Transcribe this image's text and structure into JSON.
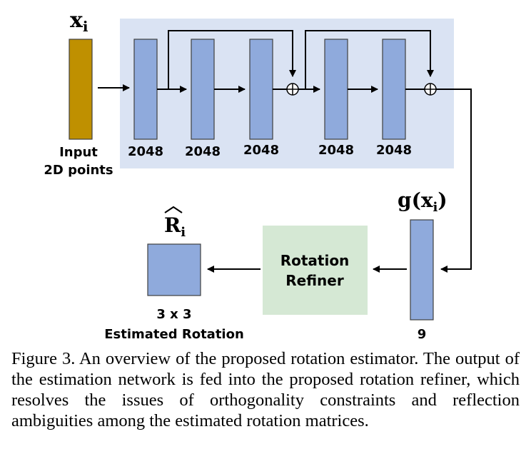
{
  "diagram": {
    "input_var": "x",
    "input_sub": "i",
    "input_label_line1": "Input",
    "input_label_line2": "2D points",
    "layer_sizes": [
      "2048",
      "2048",
      "2048",
      "2048",
      "2048"
    ],
    "output_func": "g(x",
    "output_sub": "i",
    "output_close": ")",
    "output_size": "9",
    "refiner_line1": "Rotation",
    "refiner_line2": "Refiner",
    "result_var": "R",
    "result_sub": "i",
    "result_dim": "3 x 3",
    "result_label": "Estimated Rotation",
    "add_symbol": "⊕",
    "colors": {
      "network_bg": "#dae3f3",
      "layer_fill": "#8faadc",
      "input_fill": "#bf9000",
      "refiner_fill": "#d5e8d4"
    }
  },
  "caption": "Figure 3. An overview of the proposed rotation estimator.  The output of the estimation network is fed into the proposed rotation refiner, which resolves the issues of orthogonality constraints and reflection ambiguities among the estimated rotation matrices."
}
